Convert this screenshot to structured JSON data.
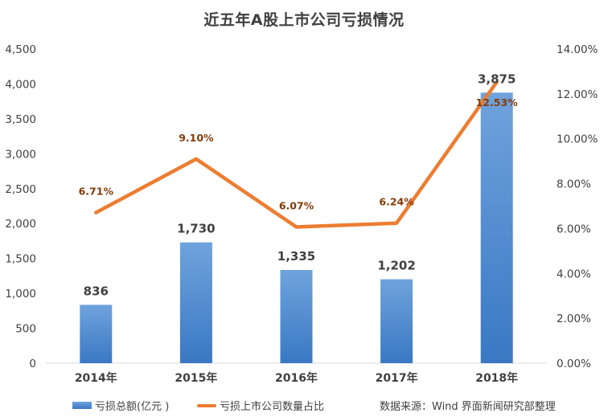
{
  "chart_data": {
    "type": "bar",
    "title": "近五年A股上市公司亏损情况",
    "categories": [
      "2014年",
      "2015年",
      "2016年",
      "2017年",
      "2018年"
    ],
    "series": [
      {
        "name": "亏损总额(亿元 )",
        "type": "bar",
        "axis": "left",
        "values": [
          836,
          1730,
          1335,
          1202,
          3875
        ],
        "labels": [
          "836",
          "1,730",
          "1,335",
          "1,202",
          "3,875"
        ]
      },
      {
        "name": "亏损上市公司数量占比",
        "type": "line",
        "axis": "right",
        "values": [
          6.71,
          9.1,
          6.07,
          6.24,
          12.53
        ],
        "labels": [
          "6.71%",
          "9.10%",
          "6.07%",
          "6.24%",
          "12.53%"
        ]
      }
    ],
    "y_left": {
      "min": 0,
      "max": 4500,
      "ticks": [
        "0",
        "500",
        "1,000",
        "1,500",
        "2,000",
        "2,500",
        "3,000",
        "3,500",
        "4,000",
        "4,500"
      ]
    },
    "y_right": {
      "min": 0,
      "max": 14,
      "ticks": [
        "0.00%",
        "2.00%",
        "4.00%",
        "6.00%",
        "8.00%",
        "10.00%",
        "12.00%",
        "14.00%"
      ]
    },
    "grid": false,
    "legend_position": "bottom",
    "source": "数据来源：Wind   界面新闻研究部整理",
    "colors": {
      "bar_top": "#6fa3dc",
      "bar_bottom": "#3a78c4",
      "line": "#ed7d31",
      "line_label": "#833c0b",
      "text": "#404040",
      "axis": "#d9d9d9"
    }
  }
}
